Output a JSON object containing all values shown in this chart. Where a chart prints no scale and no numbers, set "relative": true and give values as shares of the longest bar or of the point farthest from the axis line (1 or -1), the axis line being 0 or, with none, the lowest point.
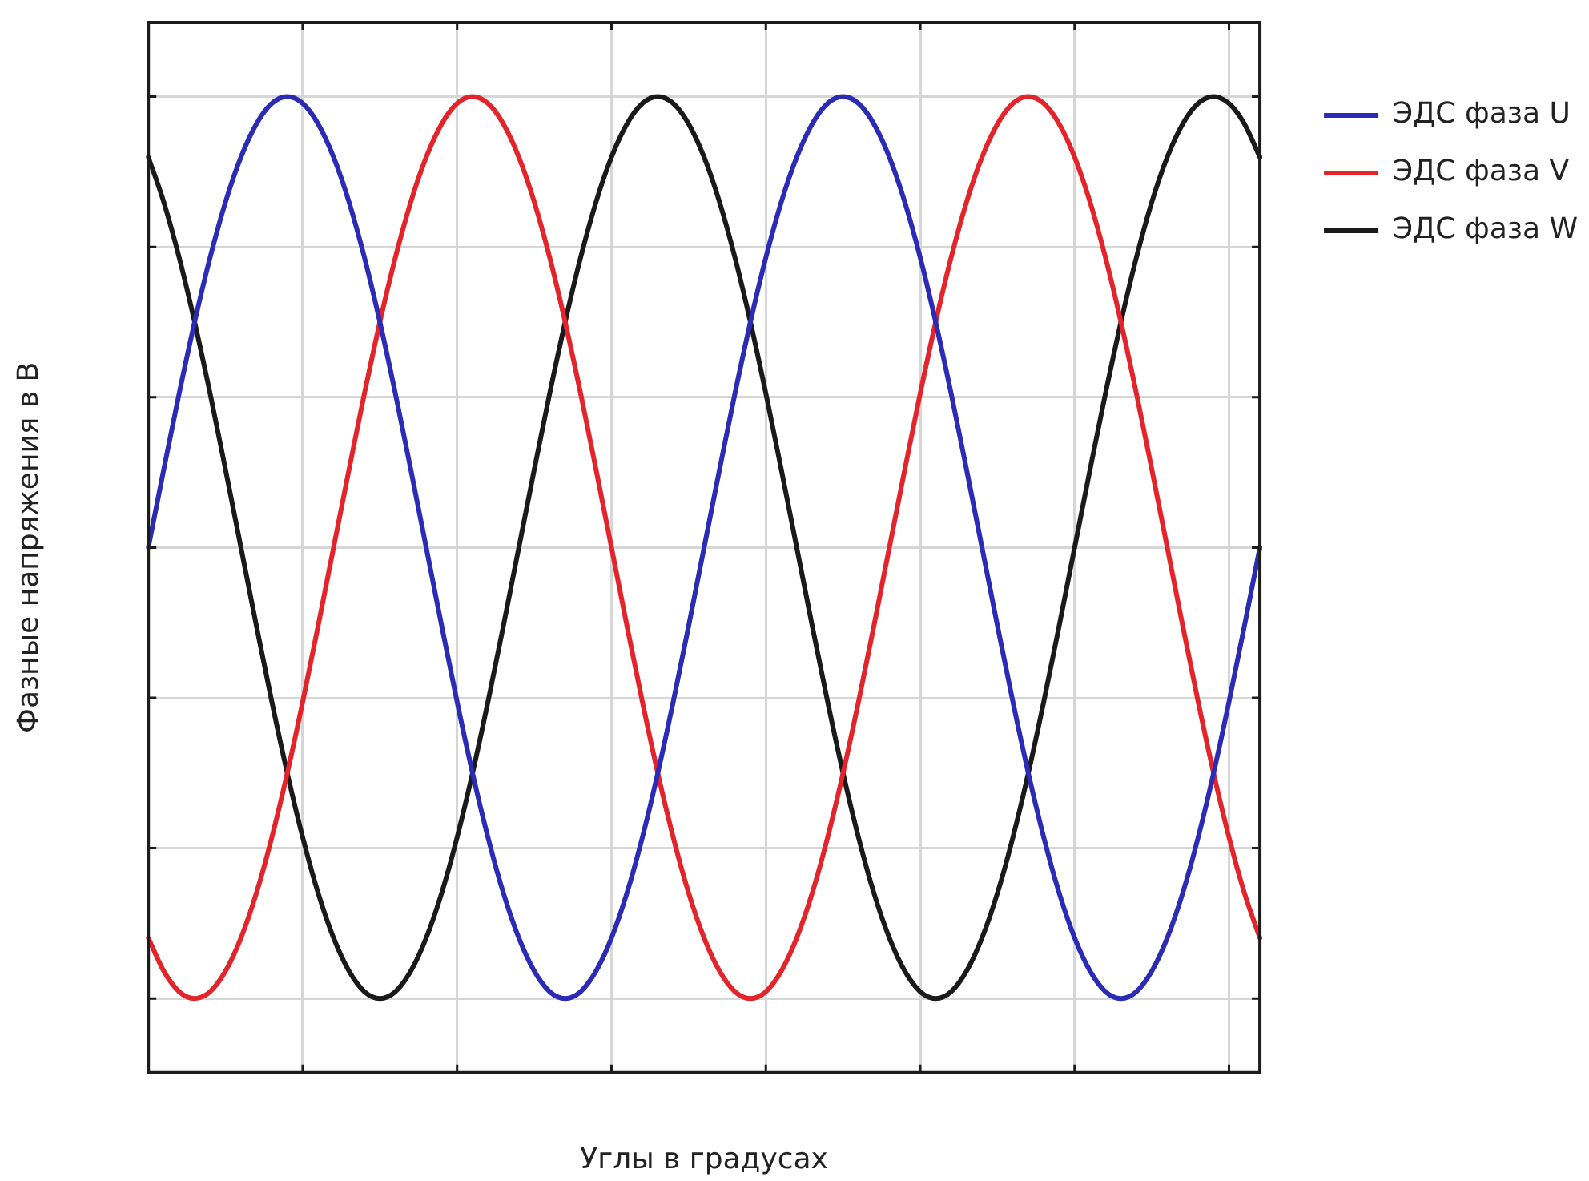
{
  "chart_data": {
    "type": "line",
    "xlabel": "Углы в градусах",
    "ylabel": "Фазные напряжения в В",
    "relative": true,
    "grid": true,
    "legend": "top right",
    "categories": [
      null,
      null,
      null,
      null,
      null,
      null,
      null,
      null,
      null,
      null,
      null,
      null,
      null,
      null,
      null,
      null,
      null,
      null,
      null,
      null,
      null,
      null,
      null,
      null,
      null,
      null,
      null,
      null,
      null,
      null,
      null,
      null,
      null,
      null,
      null,
      null,
      null,
      null,
      null,
      null,
      null,
      null,
      null,
      null,
      null,
      null,
      null,
      null,
      null,
      null,
      null,
      null,
      null,
      null,
      null,
      null,
      null,
      null,
      null,
      null,
      null,
      null,
      null,
      null,
      null,
      null,
      null,
      null,
      null,
      null,
      null,
      null,
      null
    ],
    "series": [
      {
        "name": "ЭДС фаза U",
        "color": "#2b2bb5",
        "values": [
          0.538,
          0.618,
          0.696,
          0.769,
          0.835,
          0.892,
          0.938,
          0.972,
          0.993,
          1,
          0.993,
          0.972,
          0.938,
          0.892,
          0.835,
          0.769,
          0.696,
          0.618,
          0.538,
          0.458,
          0.38,
          0.307,
          0.241,
          0.184,
          0.138,
          0.104,
          0.083,
          0.076,
          0.083,
          0.104,
          0.138,
          0.184,
          0.241,
          0.307,
          0.38,
          0.458,
          0.538,
          0.618,
          0.696,
          0.769,
          0.835,
          0.892,
          0.938,
          0.972,
          0.993,
          1,
          0.993,
          0.972,
          0.938,
          0.892,
          0.835,
          0.769,
          0.696,
          0.618,
          0.538,
          0.458,
          0.38,
          0.307,
          0.241,
          0.184,
          0.138,
          0.104,
          0.083,
          0.076,
          0.083,
          0.104,
          0.138,
          0.184,
          0.241,
          0.307,
          0.38,
          0.458,
          0.538
        ]
      },
      {
        "name": "ЭДС фаза V",
        "color": "#e3242b",
        "values": [
          0.138,
          0.104,
          0.083,
          0.076,
          0.083,
          0.104,
          0.138,
          0.184,
          0.241,
          0.307,
          0.38,
          0.458,
          0.538,
          0.618,
          0.696,
          0.769,
          0.835,
          0.892,
          0.938,
          0.972,
          0.993,
          1,
          0.993,
          0.972,
          0.938,
          0.892,
          0.835,
          0.769,
          0.696,
          0.618,
          0.538,
          0.458,
          0.38,
          0.307,
          0.241,
          0.184,
          0.138,
          0.104,
          0.083,
          0.076,
          0.083,
          0.104,
          0.138,
          0.184,
          0.241,
          0.307,
          0.38,
          0.458,
          0.538,
          0.618,
          0.696,
          0.769,
          0.835,
          0.892,
          0.938,
          0.972,
          0.993,
          1,
          0.993,
          0.972,
          0.938,
          0.892,
          0.835,
          0.769,
          0.696,
          0.618,
          0.538,
          0.458,
          0.38,
          0.307,
          0.241,
          0.184,
          0.138
        ]
      },
      {
        "name": "ЭДС фаза W",
        "color": "#1a1a1a",
        "values": [
          0.938,
          0.892,
          0.835,
          0.769,
          0.696,
          0.618,
          0.538,
          0.458,
          0.38,
          0.307,
          0.241,
          0.184,
          0.138,
          0.104,
          0.083,
          0.076,
          0.083,
          0.104,
          0.138,
          0.184,
          0.241,
          0.307,
          0.38,
          0.458,
          0.538,
          0.618,
          0.696,
          0.769,
          0.835,
          0.892,
          0.938,
          0.972,
          0.993,
          1,
          0.993,
          0.972,
          0.938,
          0.892,
          0.835,
          0.769,
          0.696,
          0.618,
          0.538,
          0.458,
          0.38,
          0.307,
          0.241,
          0.184,
          0.138,
          0.104,
          0.083,
          0.076,
          0.083,
          0.104,
          0.138,
          0.184,
          0.241,
          0.307,
          0.38,
          0.458,
          0.538,
          0.618,
          0.696,
          0.769,
          0.835,
          0.892,
          0.938,
          0.972,
          0.993,
          1,
          0.993,
          0.972,
          0.938
        ]
      }
    ]
  }
}
